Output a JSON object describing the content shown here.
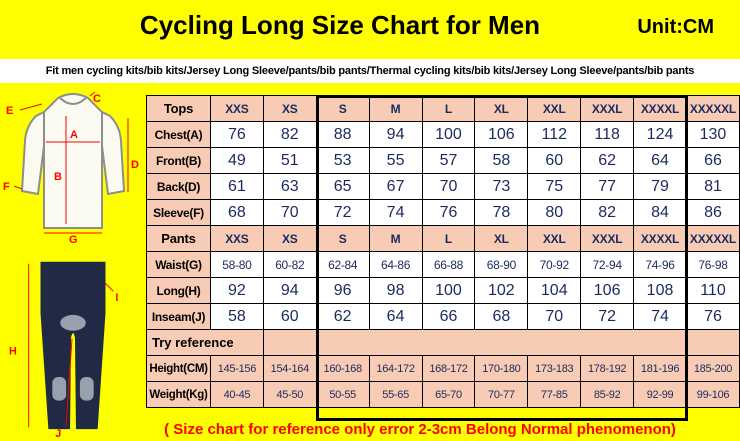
{
  "header": {
    "title": "Cycling Long Size Chart for Men",
    "unit": "Unit:CM"
  },
  "subtitle": "Fit men cycling kits/bib kits/Jersey Long Sleeve/pants/bib pants/Thermal cycling kits/bib kits/Jersey Long Sleeve/pants/bib pants",
  "footer": "( Size chart for reference only  error 2-3cm  Belong Normal phenomenon)",
  "sizes": [
    "XXS",
    "XS",
    "S",
    "M",
    "L",
    "XL",
    "XXL",
    "XXXL",
    "XXXXL",
    "XXXXXL"
  ],
  "table": {
    "sections": [
      {
        "header_label": "Tops",
        "rows": [
          {
            "label": "Chest(A)",
            "values": [
              "76",
              "82",
              "88",
              "94",
              "100",
              "106",
              "112",
              "118",
              "124",
              "130"
            ]
          },
          {
            "label": "Front(B)",
            "values": [
              "49",
              "51",
              "53",
              "55",
              "57",
              "58",
              "60",
              "62",
              "64",
              "66"
            ]
          },
          {
            "label": "Back(D)",
            "values": [
              "61",
              "63",
              "65",
              "67",
              "70",
              "73",
              "75",
              "77",
              "79",
              "81"
            ]
          },
          {
            "label": "Sleeve(F)",
            "values": [
              "68",
              "70",
              "72",
              "74",
              "76",
              "78",
              "80",
              "82",
              "84",
              "86"
            ]
          }
        ]
      },
      {
        "header_label": "Pants",
        "rows": [
          {
            "label": "Waist(G)",
            "values": [
              "58-80",
              "60-82",
              "62-84",
              "64-86",
              "66-88",
              "68-90",
              "70-92",
              "72-94",
              "74-96",
              "76-98"
            ]
          },
          {
            "label": "Long(H)",
            "values": [
              "92",
              "94",
              "96",
              "98",
              "100",
              "102",
              "104",
              "106",
              "108",
              "110"
            ]
          },
          {
            "label": "Inseam(J)",
            "values": [
              "58",
              "60",
              "62",
              "64",
              "66",
              "68",
              "70",
              "72",
              "74",
              "76"
            ]
          }
        ]
      }
    ],
    "try_reference_label": "Try reference",
    "reference_rows": [
      {
        "label": "Height(CM)",
        "values": [
          "145-156",
          "154-164",
          "160-168",
          "164-172",
          "168-172",
          "170-180",
          "173-183",
          "178-192",
          "181-196",
          "185-200"
        ]
      },
      {
        "label": "Weight(Kg)",
        "values": [
          "40-45",
          "45-50",
          "50-55",
          "55-65",
          "65-70",
          "70-77",
          "77-85",
          "85-92",
          "92-99",
          "99-106"
        ]
      }
    ]
  },
  "diagram": {
    "letters": {
      "A": "A",
      "B": "B",
      "C": "C",
      "D": "D",
      "E": "E",
      "F": "F",
      "G": "G",
      "H": "H",
      "I": "I",
      "J": "J"
    }
  },
  "colors": {
    "background": "#FFFF00",
    "header_pink": "#F8CBB4",
    "accent_red": "#FF0000",
    "table_text": "#1B2A5E",
    "pants_navy": "#202A44",
    "outline_gray": "#8E8E8E"
  }
}
